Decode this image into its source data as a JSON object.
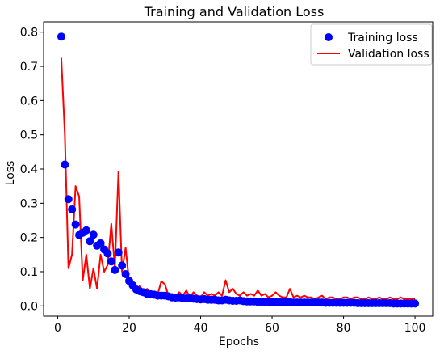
{
  "chart_data": {
    "type": "line",
    "title": "Training and Validation Loss",
    "xlabel": "Epochs",
    "ylabel": "Loss",
    "xlim": [
      -3.95,
      104.95
    ],
    "ylim": [
      -0.03,
      0.83
    ],
    "xticks": [
      0,
      20,
      40,
      60,
      80,
      100
    ],
    "yticks": [
      0.0,
      0.1,
      0.2,
      0.3,
      0.4,
      0.5,
      0.6,
      0.7,
      0.8
    ],
    "grid": false,
    "legend_position": "top-right",
    "series": [
      {
        "name": "Training loss",
        "style": "markers",
        "color": "#0000ff",
        "x": [
          1,
          2,
          3,
          4,
          5,
          6,
          7,
          8,
          9,
          10,
          11,
          12,
          13,
          14,
          15,
          16,
          17,
          18,
          19,
          20,
          21,
          22,
          23,
          24,
          25,
          26,
          27,
          28,
          29,
          30,
          31,
          32,
          33,
          34,
          35,
          36,
          37,
          38,
          39,
          40,
          41,
          42,
          43,
          44,
          45,
          46,
          47,
          48,
          49,
          50,
          51,
          52,
          53,
          54,
          55,
          56,
          57,
          58,
          59,
          60,
          61,
          62,
          63,
          64,
          65,
          66,
          67,
          68,
          69,
          70,
          71,
          72,
          73,
          74,
          75,
          76,
          77,
          78,
          79,
          80,
          81,
          82,
          83,
          84,
          85,
          86,
          87,
          88,
          89,
          90,
          91,
          92,
          93,
          94,
          95,
          96,
          97,
          98,
          99,
          100
        ],
        "values": [
          0.787,
          0.413,
          0.312,
          0.282,
          0.238,
          0.207,
          0.214,
          0.221,
          0.189,
          0.208,
          0.176,
          0.183,
          0.165,
          0.153,
          0.13,
          0.105,
          0.156,
          0.118,
          0.093,
          0.073,
          0.06,
          0.048,
          0.043,
          0.04,
          0.035,
          0.034,
          0.033,
          0.03,
          0.03,
          0.03,
          0.028,
          0.025,
          0.024,
          0.025,
          0.022,
          0.022,
          0.022,
          0.021,
          0.02,
          0.019,
          0.02,
          0.018,
          0.018,
          0.018,
          0.016,
          0.016,
          0.018,
          0.016,
          0.015,
          0.015,
          0.016,
          0.014,
          0.013,
          0.013,
          0.013,
          0.012,
          0.012,
          0.012,
          0.012,
          0.012,
          0.011,
          0.011,
          0.011,
          0.011,
          0.011,
          0.01,
          0.01,
          0.01,
          0.01,
          0.01,
          0.01,
          0.01,
          0.01,
          0.01,
          0.009,
          0.009,
          0.009,
          0.009,
          0.009,
          0.009,
          0.009,
          0.009,
          0.009,
          0.008,
          0.008,
          0.008,
          0.008,
          0.008,
          0.008,
          0.008,
          0.008,
          0.008,
          0.008,
          0.007,
          0.007,
          0.007,
          0.007,
          0.007,
          0.007,
          0.007
        ]
      },
      {
        "name": "Validation loss",
        "style": "line",
        "color": "#ff0000",
        "x": [
          1,
          2,
          3,
          4,
          5,
          6,
          7,
          8,
          9,
          10,
          11,
          12,
          13,
          14,
          15,
          16,
          17,
          18,
          19,
          20,
          21,
          22,
          23,
          24,
          25,
          26,
          27,
          28,
          29,
          30,
          31,
          32,
          33,
          34,
          35,
          36,
          37,
          38,
          39,
          40,
          41,
          42,
          43,
          44,
          45,
          46,
          47,
          48,
          49,
          50,
          51,
          52,
          53,
          54,
          55,
          56,
          57,
          58,
          59,
          60,
          61,
          62,
          63,
          64,
          65,
          66,
          67,
          68,
          69,
          70,
          71,
          72,
          73,
          74,
          75,
          76,
          77,
          78,
          79,
          80,
          81,
          82,
          83,
          84,
          85,
          86,
          87,
          88,
          89,
          90,
          91,
          92,
          93,
          94,
          95,
          96,
          97,
          98,
          99,
          100
        ],
        "values": [
          0.725,
          0.5,
          0.11,
          0.15,
          0.35,
          0.32,
          0.075,
          0.15,
          0.05,
          0.11,
          0.05,
          0.15,
          0.1,
          0.12,
          0.24,
          0.11,
          0.393,
          0.1,
          0.17,
          0.07,
          0.05,
          0.04,
          0.06,
          0.035,
          0.05,
          0.04,
          0.03,
          0.035,
          0.072,
          0.063,
          0.03,
          0.035,
          0.028,
          0.04,
          0.03,
          0.045,
          0.025,
          0.04,
          0.03,
          0.025,
          0.04,
          0.03,
          0.035,
          0.03,
          0.04,
          0.03,
          0.075,
          0.04,
          0.05,
          0.035,
          0.03,
          0.04,
          0.03,
          0.035,
          0.03,
          0.045,
          0.03,
          0.035,
          0.025,
          0.03,
          0.04,
          0.03,
          0.025,
          0.025,
          0.05,
          0.025,
          0.03,
          0.025,
          0.03,
          0.025,
          0.025,
          0.02,
          0.025,
          0.03,
          0.02,
          0.025,
          0.025,
          0.02,
          0.02,
          0.025,
          0.025,
          0.02,
          0.025,
          0.025,
          0.02,
          0.02,
          0.025,
          0.02,
          0.02,
          0.025,
          0.02,
          0.02,
          0.025,
          0.02,
          0.02,
          0.025,
          0.02,
          0.02,
          0.02,
          0.02
        ]
      }
    ]
  }
}
